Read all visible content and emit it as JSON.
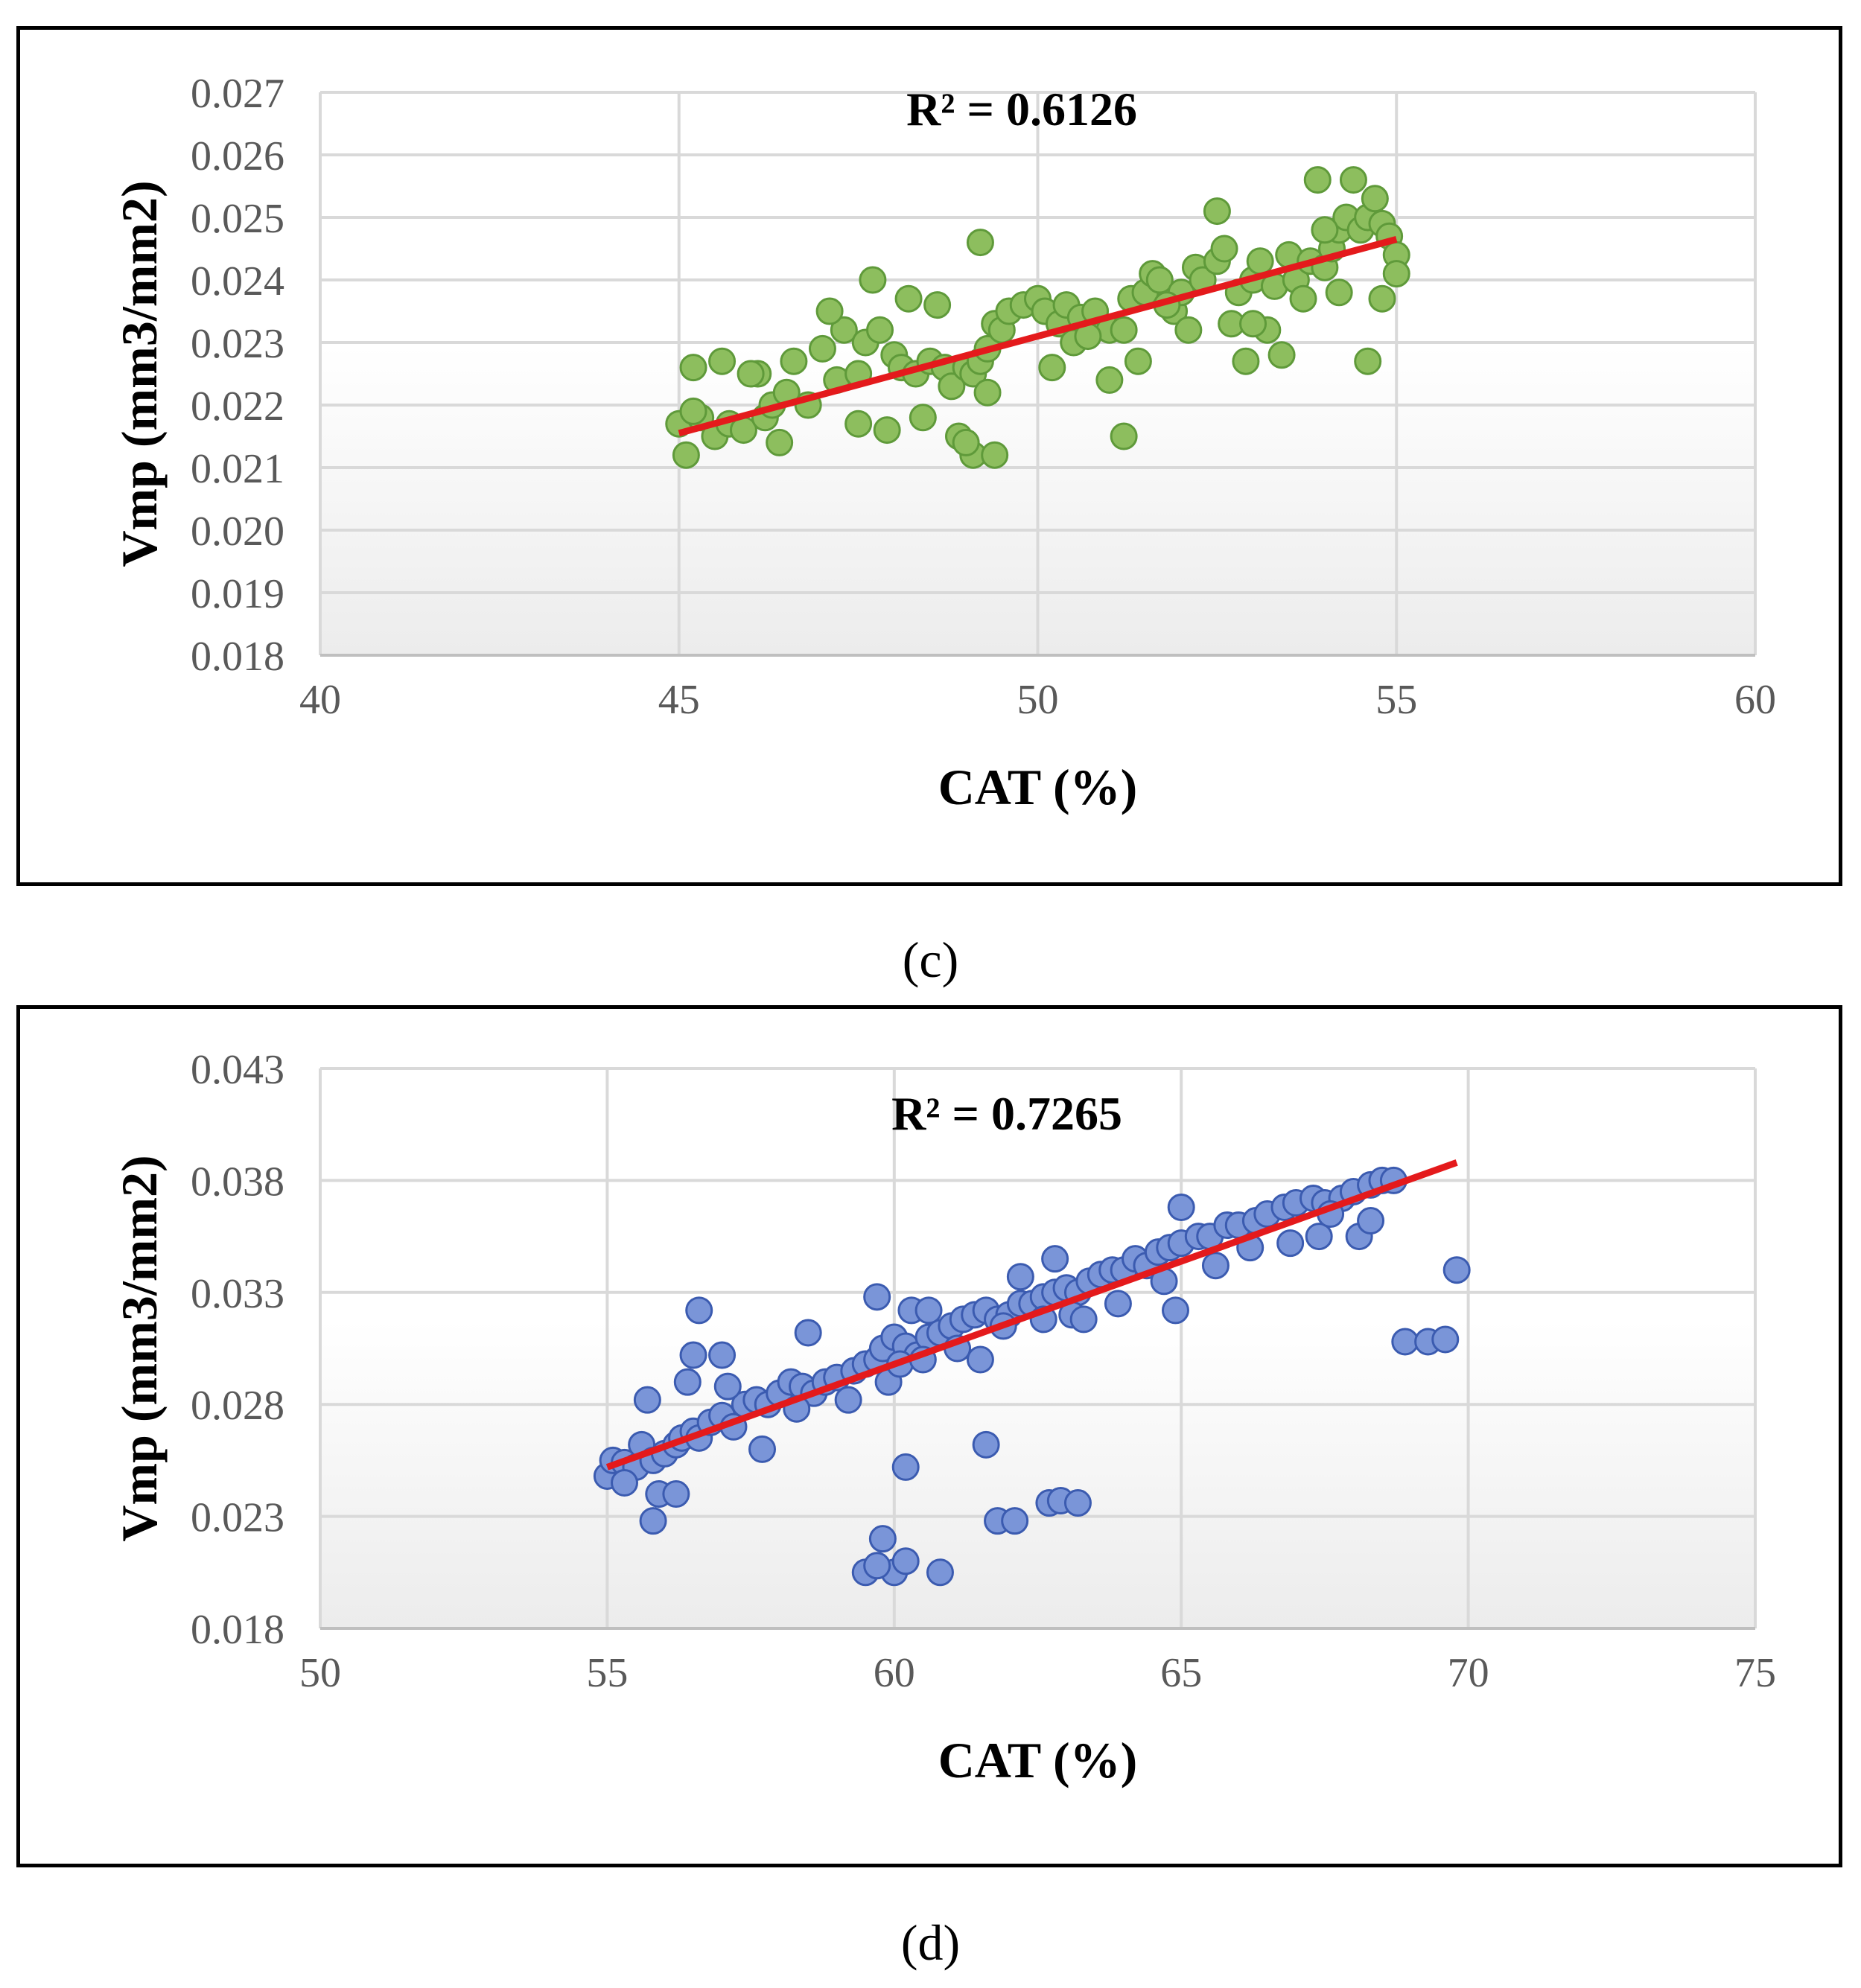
{
  "chart_data": [
    {
      "id": "c",
      "type": "scatter",
      "caption": "(c)",
      "annotation": "R² = 0.6126",
      "xlabel": "CAT (%)",
      "ylabel": "Vmp (mm3/mm2)",
      "xlim": [
        40,
        60
      ],
      "ylim": [
        0.018,
        0.027
      ],
      "xticks": [
        40,
        45,
        50,
        55,
        60
      ],
      "yticks": [
        0.018,
        0.019,
        0.02,
        0.021,
        0.022,
        0.023,
        0.024,
        0.025,
        0.026,
        0.027
      ],
      "xtick_labels": [
        "40",
        "45",
        "50",
        "55",
        "60"
      ],
      "ytick_labels": [
        "0.018",
        "0.019",
        "0.020",
        "0.021",
        "0.022",
        "0.023",
        "0.024",
        "0.025",
        "0.026",
        "0.027"
      ],
      "grid": true,
      "marker_color": "#8dbe5e",
      "marker_edge": "#5f9a3a",
      "trendline": {
        "x": [
          45,
          55
        ],
        "y": [
          0.02155,
          0.02465
        ],
        "color": "#e41a1c"
      },
      "series": [
        {
          "name": "Vmp",
          "x": [
            45.0,
            45.1,
            45.2,
            45.3,
            45.5,
            45.7,
            45.9,
            46.1,
            46.2,
            46.3,
            46.5,
            46.8,
            47.0,
            47.2,
            47.3,
            47.5,
            47.6,
            47.8,
            48.0,
            48.1,
            48.3,
            48.5,
            48.7,
            48.8,
            49.0,
            49.1,
            49.2,
            49.3,
            49.4,
            49.5,
            49.6,
            49.8,
            50.0,
            50.1,
            50.3,
            50.4,
            50.5,
            50.6,
            50.8,
            51.0,
            51.2,
            51.3,
            51.5,
            51.6,
            51.7,
            51.9,
            52.0,
            52.2,
            52.3,
            52.5,
            52.6,
            52.8,
            53.0,
            53.1,
            53.3,
            53.5,
            53.6,
            53.8,
            54.0,
            54.1,
            54.2,
            54.3,
            54.5,
            54.6,
            54.7,
            54.8,
            54.9,
            55.0,
            45.2,
            45.6,
            46.0,
            46.6,
            47.1,
            47.7,
            48.2,
            48.6,
            48.9,
            49.1,
            49.4,
            47.5,
            49.2,
            51.2,
            52.5,
            52.9,
            53.4,
            53.9,
            54.4,
            54.6,
            49.0,
            49.3,
            50.2,
            51.0,
            51.4,
            52.1,
            52.7,
            53.2,
            53.7,
            54.2,
            54.8,
            46.4,
            47.9,
            48.4,
            50.7,
            51.8,
            53.0,
            54.0,
            55.0
          ],
          "y": [
            0.0217,
            0.0212,
            0.0226,
            0.0218,
            0.0215,
            0.0217,
            0.0216,
            0.0225,
            0.0218,
            0.022,
            0.0222,
            0.022,
            0.0229,
            0.0224,
            0.0232,
            0.0225,
            0.023,
            0.0232,
            0.0228,
            0.0226,
            0.0225,
            0.0227,
            0.0226,
            0.0223,
            0.0226,
            0.0225,
            0.0227,
            0.0229,
            0.0233,
            0.0232,
            0.0235,
            0.0236,
            0.0237,
            0.0235,
            0.0233,
            0.0236,
            0.023,
            0.0234,
            0.0235,
            0.0232,
            0.0232,
            0.0237,
            0.0238,
            0.0241,
            0.024,
            0.0235,
            0.0238,
            0.0242,
            0.024,
            0.0243,
            0.0245,
            0.0238,
            0.024,
            0.0243,
            0.0239,
            0.0244,
            0.024,
            0.0243,
            0.0242,
            0.0245,
            0.0248,
            0.025,
            0.0248,
            0.025,
            0.0253,
            0.0249,
            0.0247,
            0.0244,
            0.0219,
            0.0227,
            0.0225,
            0.0227,
            0.0235,
            0.024,
            0.0237,
            0.0236,
            0.0215,
            0.0212,
            0.0212,
            0.0217,
            0.0246,
            0.0215,
            0.0251,
            0.0227,
            0.0228,
            0.0256,
            0.0256,
            0.0227,
            0.0214,
            0.0222,
            0.0226,
            0.0224,
            0.0227,
            0.0232,
            0.0233,
            0.0232,
            0.0237,
            0.0238,
            0.0237,
            0.0214,
            0.0216,
            0.0218,
            0.0231,
            0.0236,
            0.0233,
            0.0248,
            0.0241
          ]
        }
      ]
    },
    {
      "id": "d",
      "type": "scatter",
      "caption": "(d)",
      "annotation": "R² = 0.7265",
      "xlabel": "CAT (%)",
      "ylabel": "Vmp (mm3/mm2)",
      "xlim": [
        50,
        75
      ],
      "ylim": [
        0.018,
        0.043
      ],
      "xticks": [
        50,
        55,
        60,
        65,
        70,
        75
      ],
      "yticks": [
        0.018,
        0.023,
        0.028,
        0.033,
        0.038,
        0.043
      ],
      "xtick_labels": [
        "50",
        "55",
        "60",
        "65",
        "70",
        "75"
      ],
      "ytick_labels": [
        "0.018",
        "0.023",
        "0.028",
        "0.033",
        "0.038",
        "0.043"
      ],
      "grid": true,
      "marker_color": "#7a95d8",
      "marker_edge": "#3b5bb0",
      "trendline": {
        "x": [
          55,
          69.8
        ],
        "y": [
          0.0252,
          0.0388
        ],
        "color": "#e41a1c"
      },
      "series": [
        {
          "name": "Vmp",
          "x": [
            55.0,
            55.1,
            55.3,
            55.5,
            55.6,
            55.8,
            56.0,
            56.2,
            56.3,
            56.5,
            56.6,
            56.8,
            57.0,
            57.2,
            57.4,
            57.6,
            57.8,
            58.0,
            58.2,
            58.4,
            58.6,
            58.8,
            59.0,
            59.3,
            59.5,
            59.7,
            59.8,
            60.0,
            60.2,
            60.4,
            60.6,
            60.8,
            61.0,
            61.2,
            61.4,
            61.6,
            61.8,
            62.0,
            62.2,
            62.4,
            62.6,
            62.8,
            63.0,
            63.2,
            63.4,
            63.6,
            63.8,
            64.0,
            64.2,
            64.4,
            64.6,
            64.8,
            65.0,
            65.3,
            65.5,
            65.8,
            66.0,
            66.3,
            66.5,
            66.8,
            67.0,
            67.3,
            67.5,
            67.8,
            68.0,
            68.3,
            68.5,
            68.7,
            55.7,
            56.5,
            56.6,
            57.0,
            57.7,
            58.5,
            59.7,
            60.3,
            60.6,
            61.5,
            62.2,
            62.8,
            63.1,
            64.9,
            65.0,
            67.4,
            68.1,
            56.4,
            57.1,
            58.3,
            59.2,
            59.9,
            60.1,
            60.5,
            61.1,
            61.9,
            62.6,
            63.3,
            63.9,
            64.7,
            65.6,
            66.2,
            66.9,
            67.6,
            68.3,
            59.5,
            59.8,
            60.0,
            60.2,
            60.8,
            59.7,
            61.6,
            61.8,
            62.1,
            62.7,
            62.9,
            63.2,
            60.2,
            68.9,
            69.3,
            69.6,
            69.8,
            55.3,
            55.9,
            56.2,
            55.8
          ],
          "y": [
            0.0248,
            0.0255,
            0.0254,
            0.0252,
            0.0262,
            0.0255,
            0.0258,
            0.0262,
            0.0265,
            0.0268,
            0.0265,
            0.0272,
            0.0275,
            0.027,
            0.028,
            0.0282,
            0.028,
            0.0285,
            0.029,
            0.0288,
            0.0285,
            0.029,
            0.0292,
            0.0295,
            0.0298,
            0.03,
            0.0305,
            0.031,
            0.0306,
            0.0302,
            0.031,
            0.0312,
            0.0315,
            0.0318,
            0.032,
            0.0322,
            0.0318,
            0.032,
            0.0325,
            0.0325,
            0.0328,
            0.033,
            0.0332,
            0.033,
            0.0335,
            0.0338,
            0.034,
            0.034,
            0.0345,
            0.0342,
            0.0348,
            0.035,
            0.0352,
            0.0355,
            0.0355,
            0.036,
            0.036,
            0.0362,
            0.0365,
            0.0368,
            0.037,
            0.0372,
            0.037,
            0.0372,
            0.0375,
            0.0378,
            0.038,
            0.038,
            0.0282,
            0.0302,
            0.0322,
            0.0302,
            0.026,
            0.0312,
            0.0328,
            0.0322,
            0.0322,
            0.03,
            0.0337,
            0.0345,
            0.032,
            0.0322,
            0.0368,
            0.0355,
            0.0355,
            0.029,
            0.0288,
            0.0278,
            0.0282,
            0.029,
            0.0298,
            0.03,
            0.0305,
            0.0315,
            0.0318,
            0.0318,
            0.0325,
            0.0335,
            0.0342,
            0.035,
            0.0352,
            0.0365,
            0.0362,
            0.0205,
            0.022,
            0.0205,
            0.021,
            0.0205,
            0.0208,
            0.0262,
            0.0228,
            0.0228,
            0.0236,
            0.0237,
            0.0236,
            0.0252,
            0.0308,
            0.0308,
            0.0309,
            0.034,
            0.0245,
            0.024,
            0.024,
            0.0228
          ]
        }
      ]
    }
  ]
}
